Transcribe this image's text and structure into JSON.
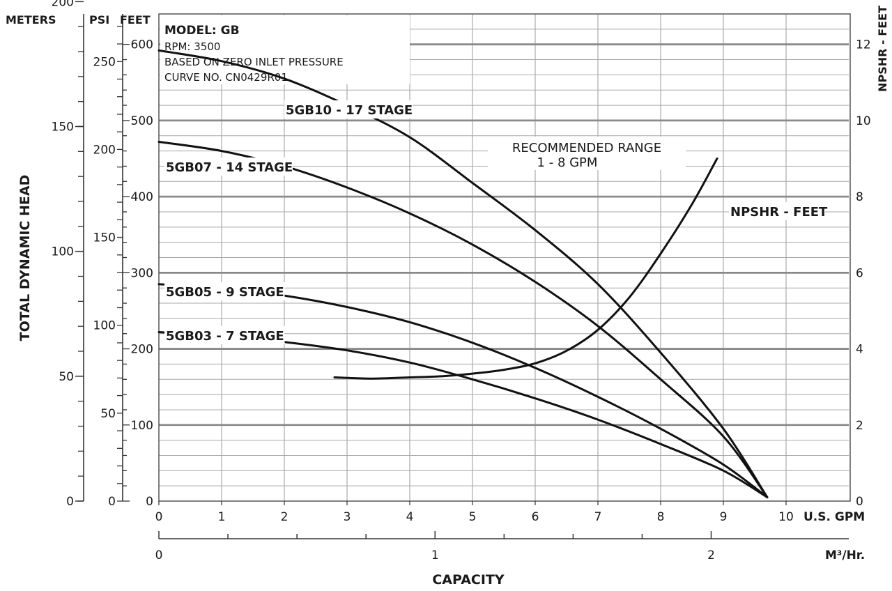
{
  "chart_data": {
    "type": "line",
    "info": {
      "model": "MODEL: GB",
      "rpm": "RPM: 3500",
      "basis": "BASED ON ZERO INLET PRESSURE",
      "curve_no": "CURVE NO. CN0429R01"
    },
    "axis_titles": {
      "meters": "METERS",
      "psi": "PSI",
      "feet": "FEET",
      "npshr": "NPSHR - FEET",
      "ylabel": "TOTAL DYNAMIC HEAD",
      "xlabel": "CAPACITY",
      "gpm_unit": "U.S. GPM",
      "m3_unit": "M³/Hr."
    },
    "x_gpm": {
      "range": [
        0,
        11
      ],
      "ticks": [
        "0",
        "1",
        "2",
        "3",
        "4",
        "5",
        "6",
        "7",
        "8",
        "9",
        "10"
      ]
    },
    "x_m3hr": {
      "ticks": [
        "0",
        "1",
        "2"
      ],
      "tick_values": [
        0,
        1,
        2
      ]
    },
    "y_feet": {
      "range": [
        0,
        640
      ],
      "ticks": [
        "0",
        "100",
        "200",
        "300",
        "400",
        "500",
        "600"
      ],
      "tick_values": [
        0,
        100,
        200,
        300,
        400,
        500,
        600
      ]
    },
    "y_meters": {
      "ticks": [
        "0",
        "50",
        "100",
        "150",
        "200"
      ],
      "tick_values": [
        0,
        50,
        100,
        150,
        200
      ]
    },
    "y_psi": {
      "ticks": [
        "0",
        "50",
        "100",
        "150",
        "200",
        "250"
      ],
      "tick_values": [
        0,
        50,
        100,
        150,
        200,
        250
      ]
    },
    "y_npshr": {
      "range": [
        0,
        12.8
      ],
      "ticks": [
        "0",
        "2",
        "4",
        "6",
        "8",
        "10",
        "12"
      ],
      "tick_values": [
        0,
        2,
        4,
        6,
        8,
        10,
        12
      ]
    },
    "grid": true,
    "recommended_range": {
      "line1": "RECOMMENDED RANGE",
      "line2": "1 - 8 GPM"
    },
    "series": [
      {
        "name": "5GB10 - 17 STAGE",
        "axis": "feet",
        "x": [
          0,
          1,
          2,
          3,
          4,
          5,
          6,
          7,
          8,
          9,
          9.7
        ],
        "y": [
          592,
          578,
          555,
          520,
          478,
          418,
          356,
          285,
          195,
          95,
          5
        ]
      },
      {
        "name": "5GB07 - 14 STAGE",
        "axis": "feet",
        "x": [
          0,
          1,
          2,
          3,
          4,
          5,
          6,
          7,
          8,
          9,
          9.7
        ],
        "y": [
          472,
          460,
          440,
          412,
          378,
          337,
          288,
          230,
          160,
          85,
          5
        ]
      },
      {
        "name": "5GB05 - 9 STAGE",
        "axis": "feet",
        "x": [
          0,
          1,
          2,
          3,
          4,
          5,
          6,
          7,
          8,
          9,
          9.7
        ],
        "y": [
          285,
          280,
          270,
          255,
          235,
          208,
          175,
          137,
          95,
          48,
          5
        ]
      },
      {
        "name": "5GB03 - 7 STAGE",
        "axis": "feet",
        "x": [
          0,
          1,
          2,
          3,
          4,
          5,
          6,
          7,
          8,
          9,
          9.7
        ],
        "y": [
          222,
          217,
          209,
          198,
          182,
          160,
          135,
          107,
          75,
          40,
          5
        ]
      },
      {
        "name": "NPSHR - FEET",
        "axis": "npshr",
        "x": [
          2.8,
          3.4,
          4,
          4.5,
          5,
          5.5,
          6,
          6.5,
          7,
          7.5,
          8,
          8.5,
          8.9
        ],
        "y": [
          3.25,
          3.22,
          3.25,
          3.28,
          3.35,
          3.45,
          3.62,
          3.95,
          4.5,
          5.35,
          6.5,
          7.8,
          9.0
        ]
      }
    ]
  }
}
